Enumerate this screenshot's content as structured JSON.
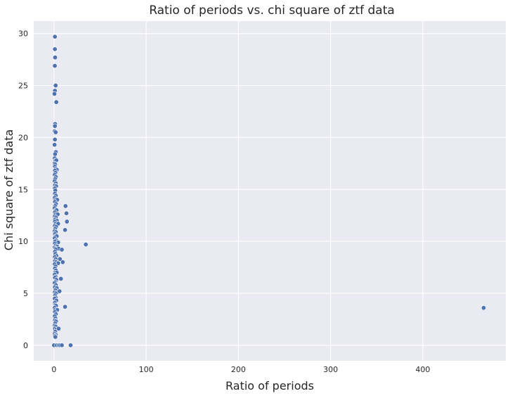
{
  "chart_data": {
    "type": "scatter",
    "title": "Ratio of periods vs. chi square of ztf data",
    "xlabel": "Ratio of periods",
    "ylabel": "Chi square of ztf data",
    "xlim": [
      -22,
      490
    ],
    "ylim": [
      -1.5,
      31.2
    ],
    "xticks": [
      "0",
      "100",
      "200",
      "300",
      "400"
    ],
    "yticks": [
      "0",
      "5",
      "10",
      "15",
      "20",
      "25",
      "30"
    ],
    "grid": true,
    "legend": "none",
    "colors": {
      "background": "#eaeaf2",
      "marker": "#4c72b0",
      "grid": "#ffffff"
    },
    "points": [
      [
        1.0,
        29.7
      ],
      [
        1.0,
        28.5
      ],
      [
        1.2,
        27.7
      ],
      [
        0.9,
        26.9
      ],
      [
        1.8,
        25.0
      ],
      [
        1.0,
        24.5
      ],
      [
        0.5,
        24.2
      ],
      [
        2.5,
        23.4
      ],
      [
        1.2,
        21.3
      ],
      [
        1.0,
        21.1
      ],
      [
        0.8,
        20.6
      ],
      [
        1.8,
        20.5
      ],
      [
        1.0,
        19.8
      ],
      [
        0.6,
        19.3
      ],
      [
        2.0,
        18.6
      ],
      [
        1.2,
        18.4
      ],
      [
        0.8,
        18.0
      ],
      [
        1.5,
        17.8
      ],
      [
        2.5,
        17.8
      ],
      [
        0.6,
        17.5
      ],
      [
        1.3,
        17.4
      ],
      [
        1.0,
        17.2
      ],
      [
        2.0,
        17.0
      ],
      [
        3.0,
        16.9
      ],
      [
        1.0,
        16.8
      ],
      [
        1.5,
        16.6
      ],
      [
        0.8,
        16.4
      ],
      [
        2.0,
        16.2
      ],
      [
        1.2,
        16.0
      ],
      [
        0.7,
        15.8
      ],
      [
        1.8,
        15.6
      ],
      [
        1.0,
        15.4
      ],
      [
        2.3,
        15.3
      ],
      [
        0.9,
        15.1
      ],
      [
        1.4,
        14.9
      ],
      [
        1.0,
        14.6
      ],
      [
        2.0,
        14.4
      ],
      [
        0.8,
        14.2
      ],
      [
        1.6,
        14.0
      ],
      [
        3.5,
        14.0
      ],
      [
        1.0,
        13.8
      ],
      [
        2.2,
        13.6
      ],
      [
        1.2,
        13.4
      ],
      [
        0.6,
        13.2
      ],
      [
        1.8,
        13.0
      ],
      [
        2.8,
        13.0
      ],
      [
        1.0,
        12.8
      ],
      [
        1.5,
        12.6
      ],
      [
        4.0,
        12.6
      ],
      [
        0.8,
        12.4
      ],
      [
        2.0,
        12.3
      ],
      [
        1.2,
        12.1
      ],
      [
        3.0,
        12.0
      ],
      [
        1.0,
        11.9
      ],
      [
        1.7,
        11.7
      ],
      [
        4.5,
        11.7
      ],
      [
        0.9,
        11.5
      ],
      [
        2.3,
        11.4
      ],
      [
        1.3,
        11.2
      ],
      [
        0.7,
        11.0
      ],
      [
        2.0,
        10.9
      ],
      [
        1.0,
        10.7
      ],
      [
        1.6,
        10.5
      ],
      [
        3.0,
        10.5
      ],
      [
        0.8,
        10.3
      ],
      [
        2.2,
        10.1
      ],
      [
        1.2,
        10.0
      ],
      [
        4.5,
        9.9
      ],
      [
        1.0,
        9.8
      ],
      [
        1.8,
        9.6
      ],
      [
        3.2,
        9.5
      ],
      [
        0.6,
        9.4
      ],
      [
        1.4,
        9.3
      ],
      [
        5.0,
        9.3
      ],
      [
        2.0,
        9.2
      ],
      [
        1.0,
        9.0
      ],
      [
        1.5,
        8.8
      ],
      [
        2.6,
        8.6
      ],
      [
        0.9,
        8.5
      ],
      [
        1.8,
        8.3
      ],
      [
        6.5,
        8.3
      ],
      [
        1.1,
        8.1
      ],
      [
        2.4,
        8.0
      ],
      [
        4.5,
        7.9
      ],
      [
        0.7,
        7.8
      ],
      [
        1.6,
        7.6
      ],
      [
        1.0,
        7.4
      ],
      [
        2.0,
        7.2
      ],
      [
        1.3,
        7.0
      ],
      [
        3.0,
        7.0
      ],
      [
        0.8,
        6.8
      ],
      [
        1.8,
        6.6
      ],
      [
        1.0,
        6.5
      ],
      [
        2.5,
        6.3
      ],
      [
        1.4,
        6.1
      ],
      [
        0.7,
        6.0
      ],
      [
        2.0,
        5.8
      ],
      [
        1.0,
        5.6
      ],
      [
        3.0,
        5.5
      ],
      [
        1.5,
        5.3
      ],
      [
        0.9,
        5.1
      ],
      [
        2.2,
        5.0
      ],
      [
        1.2,
        4.8
      ],
      [
        1.8,
        4.6
      ],
      [
        0.8,
        4.5
      ],
      [
        2.6,
        4.3
      ],
      [
        1.0,
        4.1
      ],
      [
        1.5,
        3.9
      ],
      [
        2.2,
        3.8
      ],
      [
        0.7,
        3.6
      ],
      [
        1.3,
        3.4
      ],
      [
        3.5,
        3.4
      ],
      [
        1.0,
        3.2
      ],
      [
        2.0,
        3.0
      ],
      [
        0.8,
        2.8
      ],
      [
        1.5,
        2.6
      ],
      [
        1.0,
        2.4
      ],
      [
        2.2,
        2.3
      ],
      [
        1.2,
        2.1
      ],
      [
        0.7,
        1.9
      ],
      [
        1.8,
        1.8
      ],
      [
        1.0,
        1.6
      ],
      [
        2.5,
        1.5
      ],
      [
        1.3,
        1.3
      ],
      [
        0.8,
        1.1
      ],
      [
        2.0,
        1.0
      ],
      [
        1.0,
        0.9
      ],
      [
        1.5,
        0.8
      ],
      [
        12.5,
        13.4
      ],
      [
        13.5,
        12.7
      ],
      [
        14.0,
        11.9
      ],
      [
        12.0,
        11.1
      ],
      [
        8.5,
        9.2
      ],
      [
        9.5,
        8.0
      ],
      [
        7.5,
        6.4
      ],
      [
        6.0,
        5.2
      ],
      [
        12.0,
        3.7
      ],
      [
        5.0,
        1.6
      ],
      [
        34.5,
        9.7
      ],
      [
        0.0,
        0.0
      ],
      [
        3.0,
        0.0
      ],
      [
        5.0,
        0.0
      ],
      [
        6.5,
        0.0
      ],
      [
        8.5,
        0.0
      ],
      [
        18.0,
        0.0
      ],
      [
        466.0,
        3.6
      ]
    ]
  }
}
